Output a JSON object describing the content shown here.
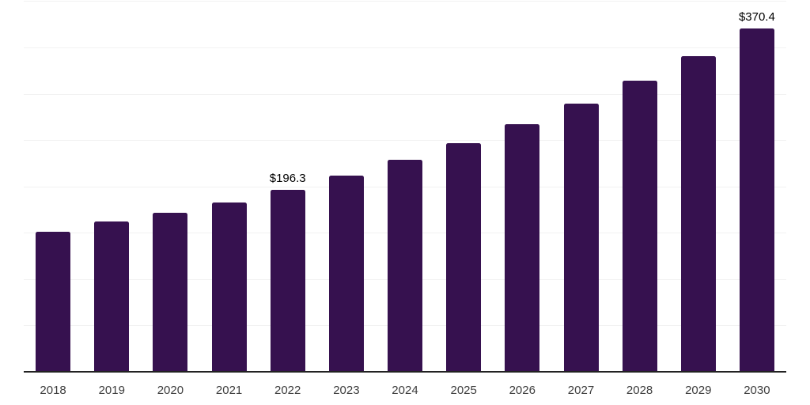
{
  "chart_data": {
    "type": "bar",
    "title": "",
    "xlabel": "",
    "ylabel": "",
    "categories": [
      "2018",
      "2019",
      "2020",
      "2021",
      "2022",
      "2023",
      "2024",
      "2025",
      "2026",
      "2027",
      "2028",
      "2029",
      "2030"
    ],
    "values": [
      151,
      162,
      172,
      183,
      196.3,
      212,
      229,
      247,
      267,
      289,
      314,
      341,
      370.4
    ],
    "data_labels": [
      {
        "category": "2022",
        "index": 4,
        "text": "$196.3"
      },
      {
        "category": "2030",
        "index": 12,
        "text": "$370.4"
      }
    ],
    "ylim": [
      0,
      400
    ],
    "grid_step": 50,
    "grid": true,
    "legend": false,
    "y_axis_labels_visible": false,
    "colors": {
      "bar": "#36114F",
      "axis_line": "#222222",
      "gridline": "#f2f2f2",
      "tick_label": "#3d3d3d",
      "data_label": "#000000",
      "background": "#ffffff"
    }
  }
}
